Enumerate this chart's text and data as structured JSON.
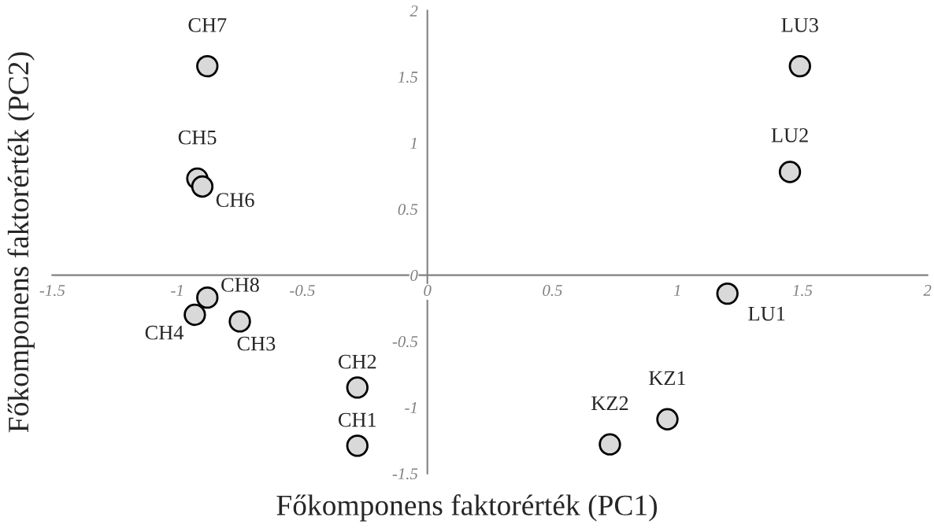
{
  "chart_data": {
    "type": "scatter",
    "xlabel": "Főkomponens faktorérték (PC1)",
    "ylabel": "Főkomponens faktorérték (PC2)",
    "x": [
      -0.28,
      -0.28,
      -0.75,
      -0.93,
      -0.92,
      -0.9,
      -0.88,
      -0.88,
      0.96,
      0.73,
      1.2,
      1.45,
      1.49
    ],
    "series": [
      {
        "color": "#d9d9d9",
        "values": [
          -1.29,
          -0.85,
          -0.35,
          -0.3,
          0.73,
          0.67,
          1.58,
          -0.17,
          -1.09,
          -1.28,
          -0.14,
          0.78,
          1.58
        ]
      }
    ],
    "annotations": [
      {
        "text": "CH1",
        "x": -0.28,
        "y": -1.29
      },
      {
        "text": "CH2",
        "x": -0.28,
        "y": -0.85
      },
      {
        "text": "CH3",
        "x": -0.75,
        "y": -0.35
      },
      {
        "text": "CH4",
        "x": -0.93,
        "y": -0.3
      },
      {
        "text": "CH5",
        "x": -0.92,
        "y": 0.73
      },
      {
        "text": "CH6",
        "x": -0.9,
        "y": 0.67
      },
      {
        "text": "CH7",
        "x": -0.88,
        "y": 1.58
      },
      {
        "text": "CH8",
        "x": -0.88,
        "y": -0.17
      },
      {
        "text": "KZ1",
        "x": 0.96,
        "y": -1.09
      },
      {
        "text": "KZ2",
        "x": 0.73,
        "y": -1.28
      },
      {
        "text": "LU1",
        "x": 1.2,
        "y": -0.14
      },
      {
        "text": "LU2",
        "x": 1.45,
        "y": 0.78
      },
      {
        "text": "LU3",
        "x": 1.49,
        "y": 1.58
      }
    ],
    "xlim": [
      -1.5,
      2
    ],
    "ylim": [
      -1.5,
      2
    ],
    "xticks": [
      -1.5,
      -1,
      -0.5,
      0,
      0.5,
      1,
      1.5,
      2
    ],
    "yticks": [
      -1.5,
      -1,
      -0.5,
      0,
      0.5,
      1,
      1.5,
      2
    ],
    "marker": "circle",
    "grid": false,
    "legend": false
  }
}
